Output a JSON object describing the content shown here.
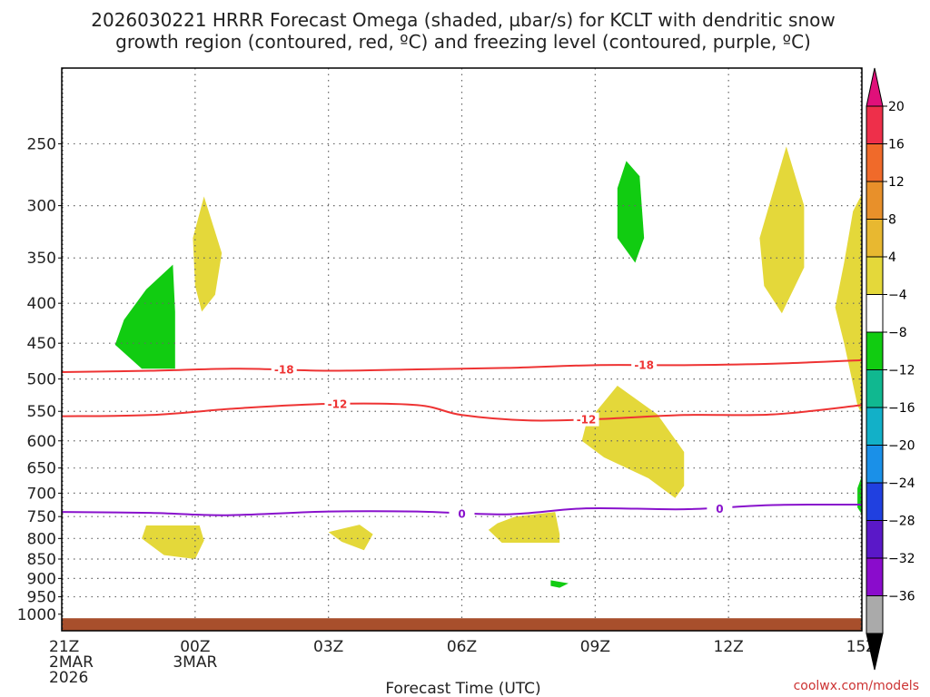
{
  "chart_data": {
    "type": "heatmap",
    "title_line1": "2026030221 HRRR Forecast Omega (shaded, µbar/s) for KCLT with dendritic snow",
    "title_line2": "growth region (contoured, red, ºC) and freezing level (contoured, purple, ºC)",
    "xlabel": "Forecast Time (UTC)",
    "credit": "coolwx.com/models",
    "x_ticks": [
      {
        "hour": 0,
        "l1": "21Z",
        "l2": "2MAR",
        "l3": "2026"
      },
      {
        "hour": 3,
        "l1": "00Z",
        "l2": "3MAR",
        "l3": ""
      },
      {
        "hour": 6,
        "l1": "03Z",
        "l2": "",
        "l3": ""
      },
      {
        "hour": 9,
        "l1": "06Z",
        "l2": "",
        "l3": ""
      },
      {
        "hour": 12,
        "l1": "09Z",
        "l2": "",
        "l3": ""
      },
      {
        "hour": 15,
        "l1": "12Z",
        "l2": "",
        "l3": ""
      },
      {
        "hour": 18,
        "l1": "15Z",
        "l2": "",
        "l3": ""
      }
    ],
    "y_ticks": [
      250,
      300,
      350,
      400,
      450,
      500,
      550,
      600,
      650,
      700,
      750,
      800,
      850,
      900,
      950,
      1000
    ],
    "colorbar": {
      "labels": [
        "20",
        "16",
        "12",
        "8",
        "4",
        "−4",
        "−8",
        "−12",
        "−16",
        "−20",
        "−24",
        "−28",
        "−32",
        "−36"
      ],
      "colors": [
        "#ee2f4a",
        "#f06a2a",
        "#e8902a",
        "#e8b830",
        "#e4d83a",
        "#ffffff",
        "#11cc11",
        "#10b890",
        "#12b0c8",
        "#1a90e8",
        "#2040e0",
        "#5a18c8",
        "#8a0ccc",
        "#aaaaaa"
      ],
      "top_arrow": "#e0107a",
      "bottom_arrow": "#000000"
    },
    "contours": [
      {
        "label": "-18",
        "color": "#ee3333",
        "points": [
          [
            0,
            490
          ],
          [
            2,
            488
          ],
          [
            4,
            485
          ],
          [
            6,
            488
          ],
          [
            8,
            486
          ],
          [
            10,
            484
          ],
          [
            12,
            480
          ],
          [
            14,
            480
          ],
          [
            16,
            478
          ],
          [
            18,
            473
          ]
        ],
        "label_at": [
          [
            5,
            487
          ],
          [
            13.1,
            480
          ]
        ]
      },
      {
        "label": "-12",
        "color": "#ee3333",
        "points": [
          [
            0,
            558
          ],
          [
            2,
            556
          ],
          [
            4,
            545
          ],
          [
            6,
            538
          ],
          [
            8,
            540
          ],
          [
            9,
            556
          ],
          [
            10.5,
            565
          ],
          [
            12,
            563
          ],
          [
            14,
            556
          ],
          [
            16,
            555
          ],
          [
            18,
            540
          ]
        ],
        "label_at": [
          [
            6.2,
            539
          ],
          [
            11.8,
            564
          ]
        ]
      },
      {
        "label": "0",
        "color": "#8811cc",
        "points": [
          [
            0,
            740
          ],
          [
            2,
            742
          ],
          [
            3.7,
            747
          ],
          [
            6,
            739
          ],
          [
            8,
            739
          ],
          [
            10,
            745
          ],
          [
            11.8,
            732
          ],
          [
            14,
            734
          ],
          [
            16,
            725
          ],
          [
            18,
            724
          ]
        ],
        "label_at": [
          [
            9,
            745
          ],
          [
            14.8,
            734
          ]
        ]
      }
    ],
    "omega_regions": [
      {
        "value": -8,
        "points": [
          [
            1.4,
            420
          ],
          [
            1.9,
            384
          ],
          [
            2.5,
            357
          ],
          [
            2.55,
            410
          ],
          [
            2.55,
            485
          ],
          [
            1.8,
            485
          ],
          [
            1.2,
            452
          ]
        ]
      },
      {
        "value": 4,
        "points": [
          [
            3.2,
            292
          ],
          [
            3.6,
            345
          ],
          [
            3.45,
            390
          ],
          [
            3.15,
            410
          ],
          [
            3.0,
            380
          ],
          [
            2.95,
            330
          ]
        ]
      },
      {
        "value": 4,
        "points": [
          [
            1.9,
            770
          ],
          [
            3.1,
            770
          ],
          [
            3.2,
            805
          ],
          [
            3.0,
            850
          ],
          [
            2.3,
            840
          ],
          [
            1.8,
            800
          ]
        ]
      },
      {
        "value": 4,
        "points": [
          [
            6.0,
            785
          ],
          [
            6.7,
            768
          ],
          [
            7.0,
            790
          ],
          [
            6.8,
            828
          ],
          [
            6.3,
            808
          ]
        ]
      },
      {
        "value": 4,
        "points": [
          [
            9.8,
            765
          ],
          [
            10.2,
            750
          ],
          [
            11.1,
            740
          ],
          [
            11.2,
            790
          ],
          [
            11.2,
            810
          ],
          [
            9.9,
            810
          ],
          [
            9.6,
            780
          ]
        ]
      },
      {
        "value": -8,
        "points": [
          [
            11.0,
            905
          ],
          [
            11.4,
            913
          ],
          [
            11.2,
            925
          ],
          [
            11.0,
            920
          ]
        ]
      },
      {
        "value": -8,
        "points": [
          [
            12.7,
            263
          ],
          [
            13.0,
            275
          ],
          [
            13.1,
            330
          ],
          [
            12.9,
            355
          ],
          [
            12.5,
            330
          ],
          [
            12.5,
            285
          ]
        ]
      },
      {
        "value": 4,
        "points": [
          [
            11.8,
            570
          ],
          [
            12.5,
            510
          ],
          [
            13.4,
            555
          ],
          [
            14.0,
            620
          ],
          [
            14.0,
            685
          ],
          [
            13.8,
            710
          ],
          [
            13.2,
            670
          ],
          [
            12.2,
            630
          ],
          [
            11.7,
            600
          ]
        ]
      },
      {
        "value": 4,
        "points": [
          [
            16.3,
            252
          ],
          [
            16.7,
            300
          ],
          [
            16.7,
            360
          ],
          [
            16.2,
            412
          ],
          [
            15.8,
            380
          ],
          [
            15.7,
            330
          ]
        ]
      },
      {
        "value": 4,
        "points": [
          [
            18.2,
            290
          ],
          [
            18.2,
            555
          ],
          [
            17.9,
            540
          ],
          [
            17.6,
            450
          ],
          [
            17.4,
            405
          ],
          [
            17.6,
            355
          ],
          [
            17.8,
            305
          ]
        ]
      },
      {
        "value": 8,
        "points": [
          [
            18.2,
            400
          ],
          [
            18.2,
            480
          ],
          [
            18.1,
            455
          ],
          [
            18.1,
            420
          ]
        ]
      },
      {
        "value": -8,
        "points": [
          [
            18.2,
            665
          ],
          [
            18.2,
            745
          ],
          [
            17.9,
            730
          ],
          [
            17.9,
            690
          ]
        ]
      }
    ],
    "terrain_color": "#a84f2c"
  }
}
